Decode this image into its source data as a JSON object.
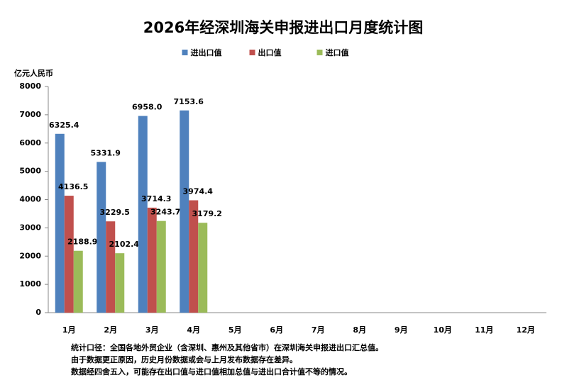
{
  "chart_data": {
    "type": "bar",
    "title": "2026年经深圳海关申报进出口月度统计图",
    "y_label": "亿元人民币",
    "categories": [
      "1月",
      "2月",
      "3月",
      "4月",
      "5月",
      "6月",
      "7月",
      "8月",
      "9月",
      "10月",
      "11月",
      "12月"
    ],
    "series": [
      {
        "name": "进出口值",
        "color": "#4f81bd",
        "values": [
          6325.4,
          5331.9,
          6958.0,
          7153.6,
          null,
          null,
          null,
          null,
          null,
          null,
          null,
          null
        ],
        "value_labels": [
          "6325.4",
          "5331.9",
          "6958.0",
          "7153.6",
          null,
          null,
          null,
          null,
          null,
          null,
          null,
          null
        ]
      },
      {
        "name": "出口值",
        "color": "#c0504d",
        "values": [
          4136.5,
          3229.5,
          3714.3,
          3974.4,
          null,
          null,
          null,
          null,
          null,
          null,
          null,
          null
        ],
        "value_labels": [
          "4136.5",
          "3229.5",
          "3714.3",
          "3974.4",
          null,
          null,
          null,
          null,
          null,
          null,
          null,
          null
        ]
      },
      {
        "name": "进口值",
        "color": "#9bbb59",
        "values": [
          2188.9,
          2102.4,
          3243.7,
          3179.2,
          null,
          null,
          null,
          null,
          null,
          null,
          null,
          null
        ],
        "value_labels": [
          "2188.9",
          "2102.4",
          "3243.7",
          "3179.2",
          null,
          null,
          null,
          null,
          null,
          null,
          null,
          null
        ]
      }
    ],
    "ylim": [
      0,
      8000
    ],
    "yticks": [
      0,
      1000,
      2000,
      3000,
      4000,
      5000,
      6000,
      7000,
      8000
    ],
    "grid": false,
    "legend": "top",
    "notes": [
      "统计口径：全国各地外贸企业（含深圳、惠州及其他省市）在深圳海关申报进出口汇总值。",
      "由于数据更正原因，历史月份数据或会与上月发布数据存在差异。",
      "数据经四舍五入，可能存在出口值与进口值相加总值与进出口合计值不等的情况。"
    ]
  }
}
